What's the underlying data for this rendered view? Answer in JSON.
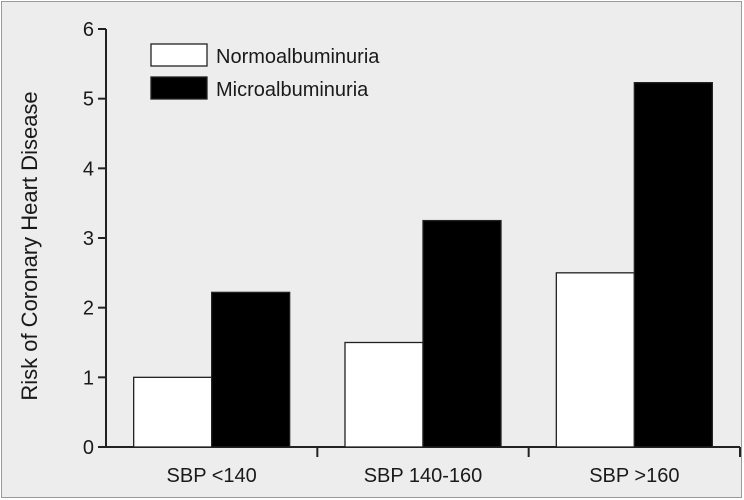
{
  "chart_data": {
    "type": "bar",
    "title": "",
    "xlabel": "",
    "ylabel": "Risk of Coronary Heart Disease",
    "categories": [
      "SBP <140",
      "SBP 140-160",
      "SBP >160"
    ],
    "series": [
      {
        "name": "Normoalbuminuria",
        "values": [
          1.0,
          1.5,
          2.5
        ],
        "color": "#ffffff"
      },
      {
        "name": "Microalbuminuria",
        "values": [
          2.22,
          3.25,
          5.23
        ],
        "color": "#000000"
      }
    ],
    "ylim": [
      0,
      6
    ],
    "yticks": [
      0,
      1,
      2,
      3,
      4,
      5,
      6
    ],
    "grid": false,
    "legend_position": "top-left"
  }
}
